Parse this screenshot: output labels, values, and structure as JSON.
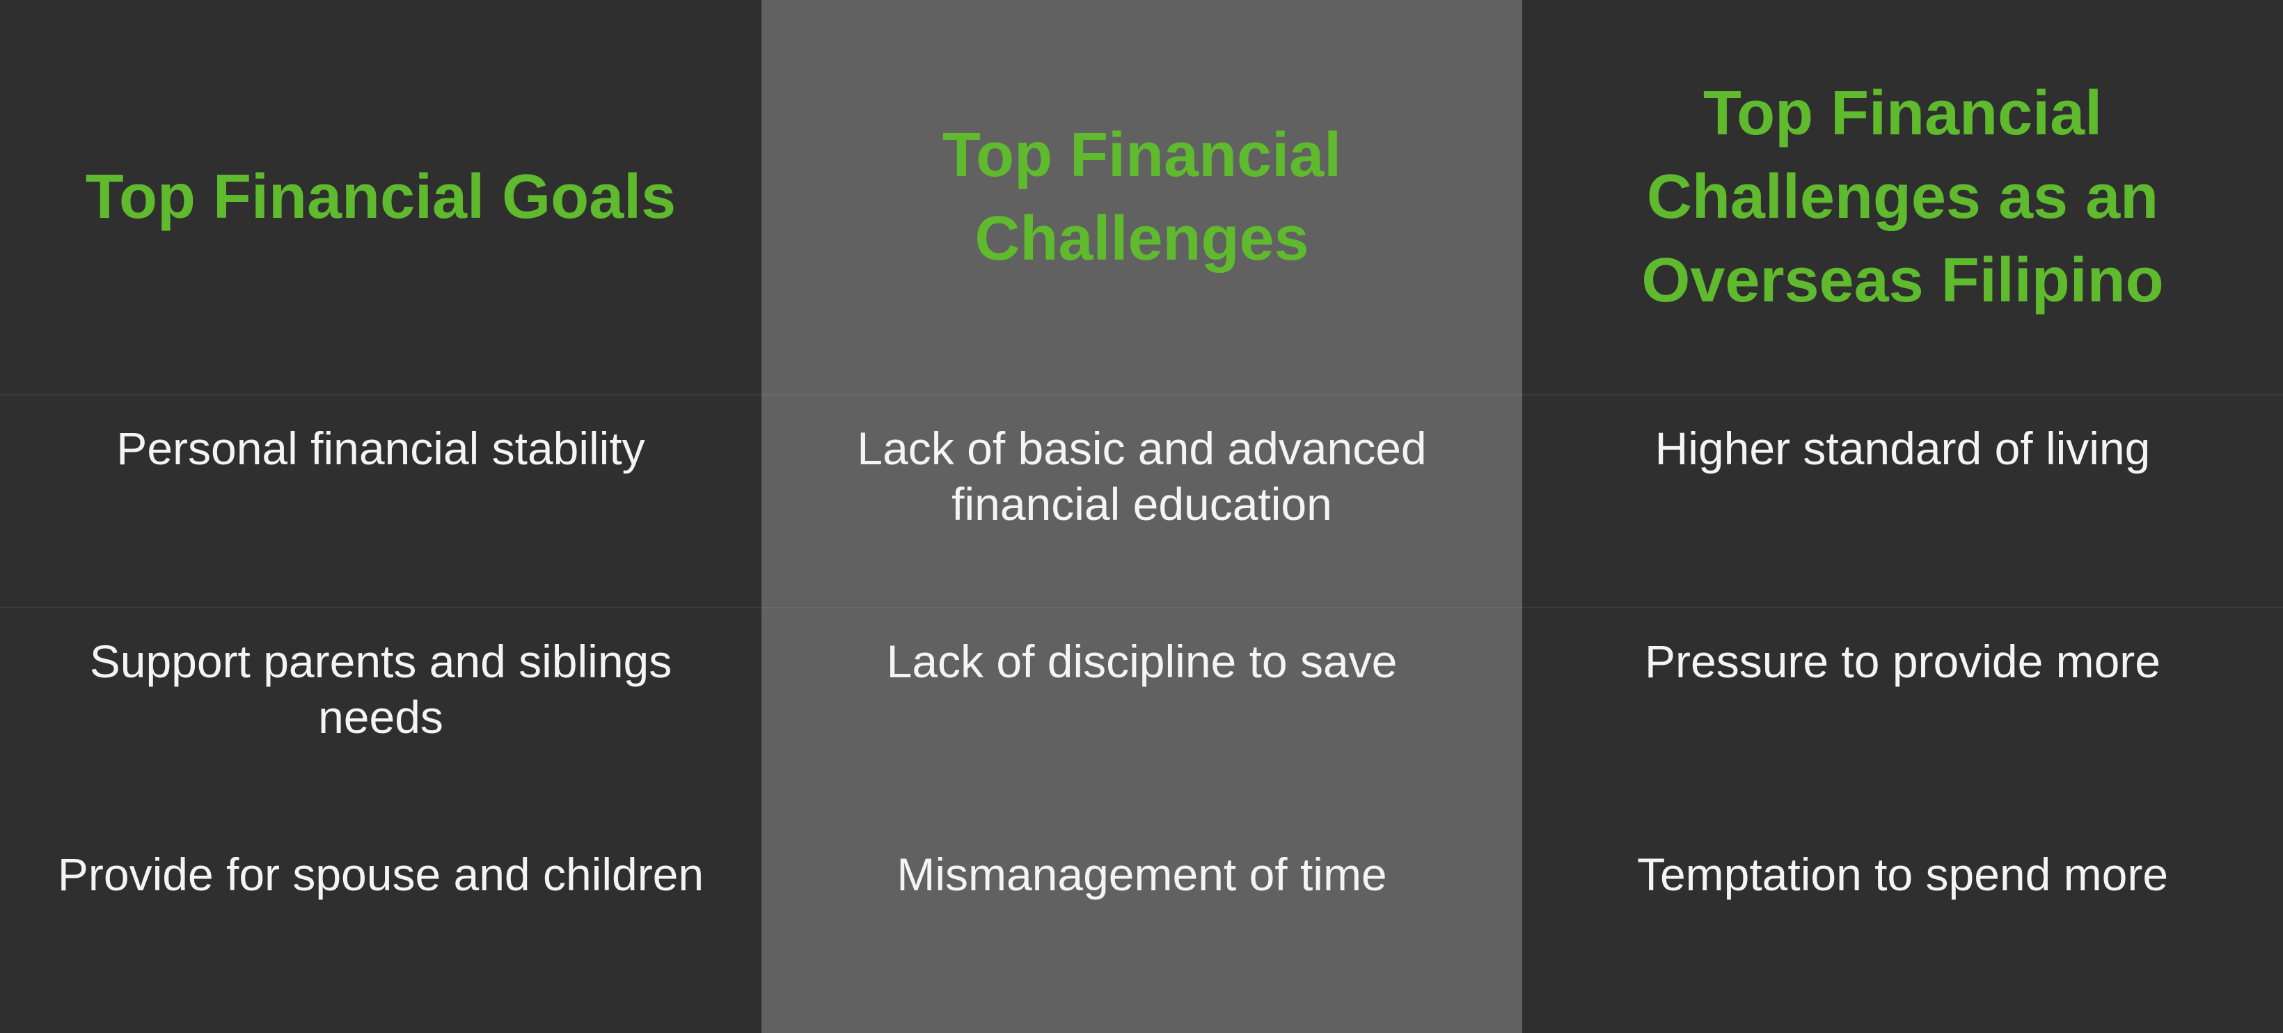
{
  "colors": {
    "dark_column": "#2f2f2f",
    "light_column": "#616161",
    "header_text": "#5fba2e",
    "body_text": "#f4f4f4"
  },
  "table": {
    "headers": [
      "Top Financial Goals",
      "Top Financial Challenges",
      "Top Financial Challenges as an Overseas Filipino"
    ],
    "rows": [
      [
        "Personal financial stability",
        "Lack of basic and advanced financial education",
        "Higher standard of living"
      ],
      [
        "Support parents and siblings needs",
        "Lack of discipline to save",
        "Pressure to provide more"
      ],
      [
        "Provide for spouse and children",
        "Mismanagement of time",
        "Temptation to spend more"
      ]
    ]
  }
}
